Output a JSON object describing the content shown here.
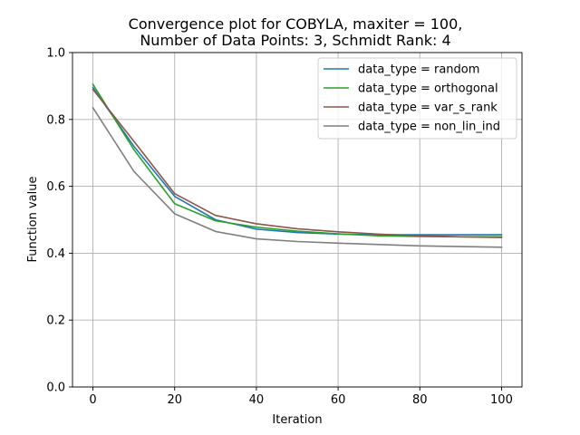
{
  "chart_data": {
    "type": "line",
    "title_line1": "Convergence plot for COBYLA, maxiter = 100,",
    "title_line2": "Number of Data Points: 3, Schmidt Rank: 4",
    "xlabel": "Iteration",
    "ylabel": "Function value",
    "xlim": [
      -5,
      105
    ],
    "ylim": [
      0.0,
      1.0
    ],
    "xticks": [
      0,
      20,
      40,
      60,
      80,
      100
    ],
    "xtick_labels": [
      "0",
      "20",
      "40",
      "60",
      "80",
      "100"
    ],
    "yticks": [
      0.0,
      0.2,
      0.4,
      0.6,
      0.8,
      1.0
    ],
    "ytick_labels": [
      "0.0",
      "0.2",
      "0.4",
      "0.6",
      "0.8",
      "1.0"
    ],
    "grid": true,
    "legend_position": "top-right",
    "x": [
      0,
      10,
      20,
      30,
      40,
      50,
      60,
      70,
      80,
      90,
      100
    ],
    "series": [
      {
        "name": "data_type = random",
        "color": "#1f77b4",
        "values": [
          0.895,
          0.72,
          0.57,
          0.5,
          0.472,
          0.462,
          0.457,
          0.455,
          0.455,
          0.455,
          0.455
        ]
      },
      {
        "name": "data_type = orthogonal",
        "color": "#2ca02c",
        "values": [
          0.905,
          0.71,
          0.548,
          0.497,
          0.478,
          0.466,
          0.458,
          0.452,
          0.45,
          0.449,
          0.449
        ]
      },
      {
        "name": "data_type = var_s_rank",
        "color": "#8c564b",
        "values": [
          0.89,
          0.735,
          0.578,
          0.513,
          0.488,
          0.473,
          0.464,
          0.457,
          0.452,
          0.449,
          0.447
        ]
      },
      {
        "name": "data_type = non_lin_ind",
        "color": "#7f7f7f",
        "values": [
          0.835,
          0.645,
          0.518,
          0.465,
          0.443,
          0.435,
          0.43,
          0.426,
          0.422,
          0.42,
          0.418
        ]
      }
    ]
  }
}
